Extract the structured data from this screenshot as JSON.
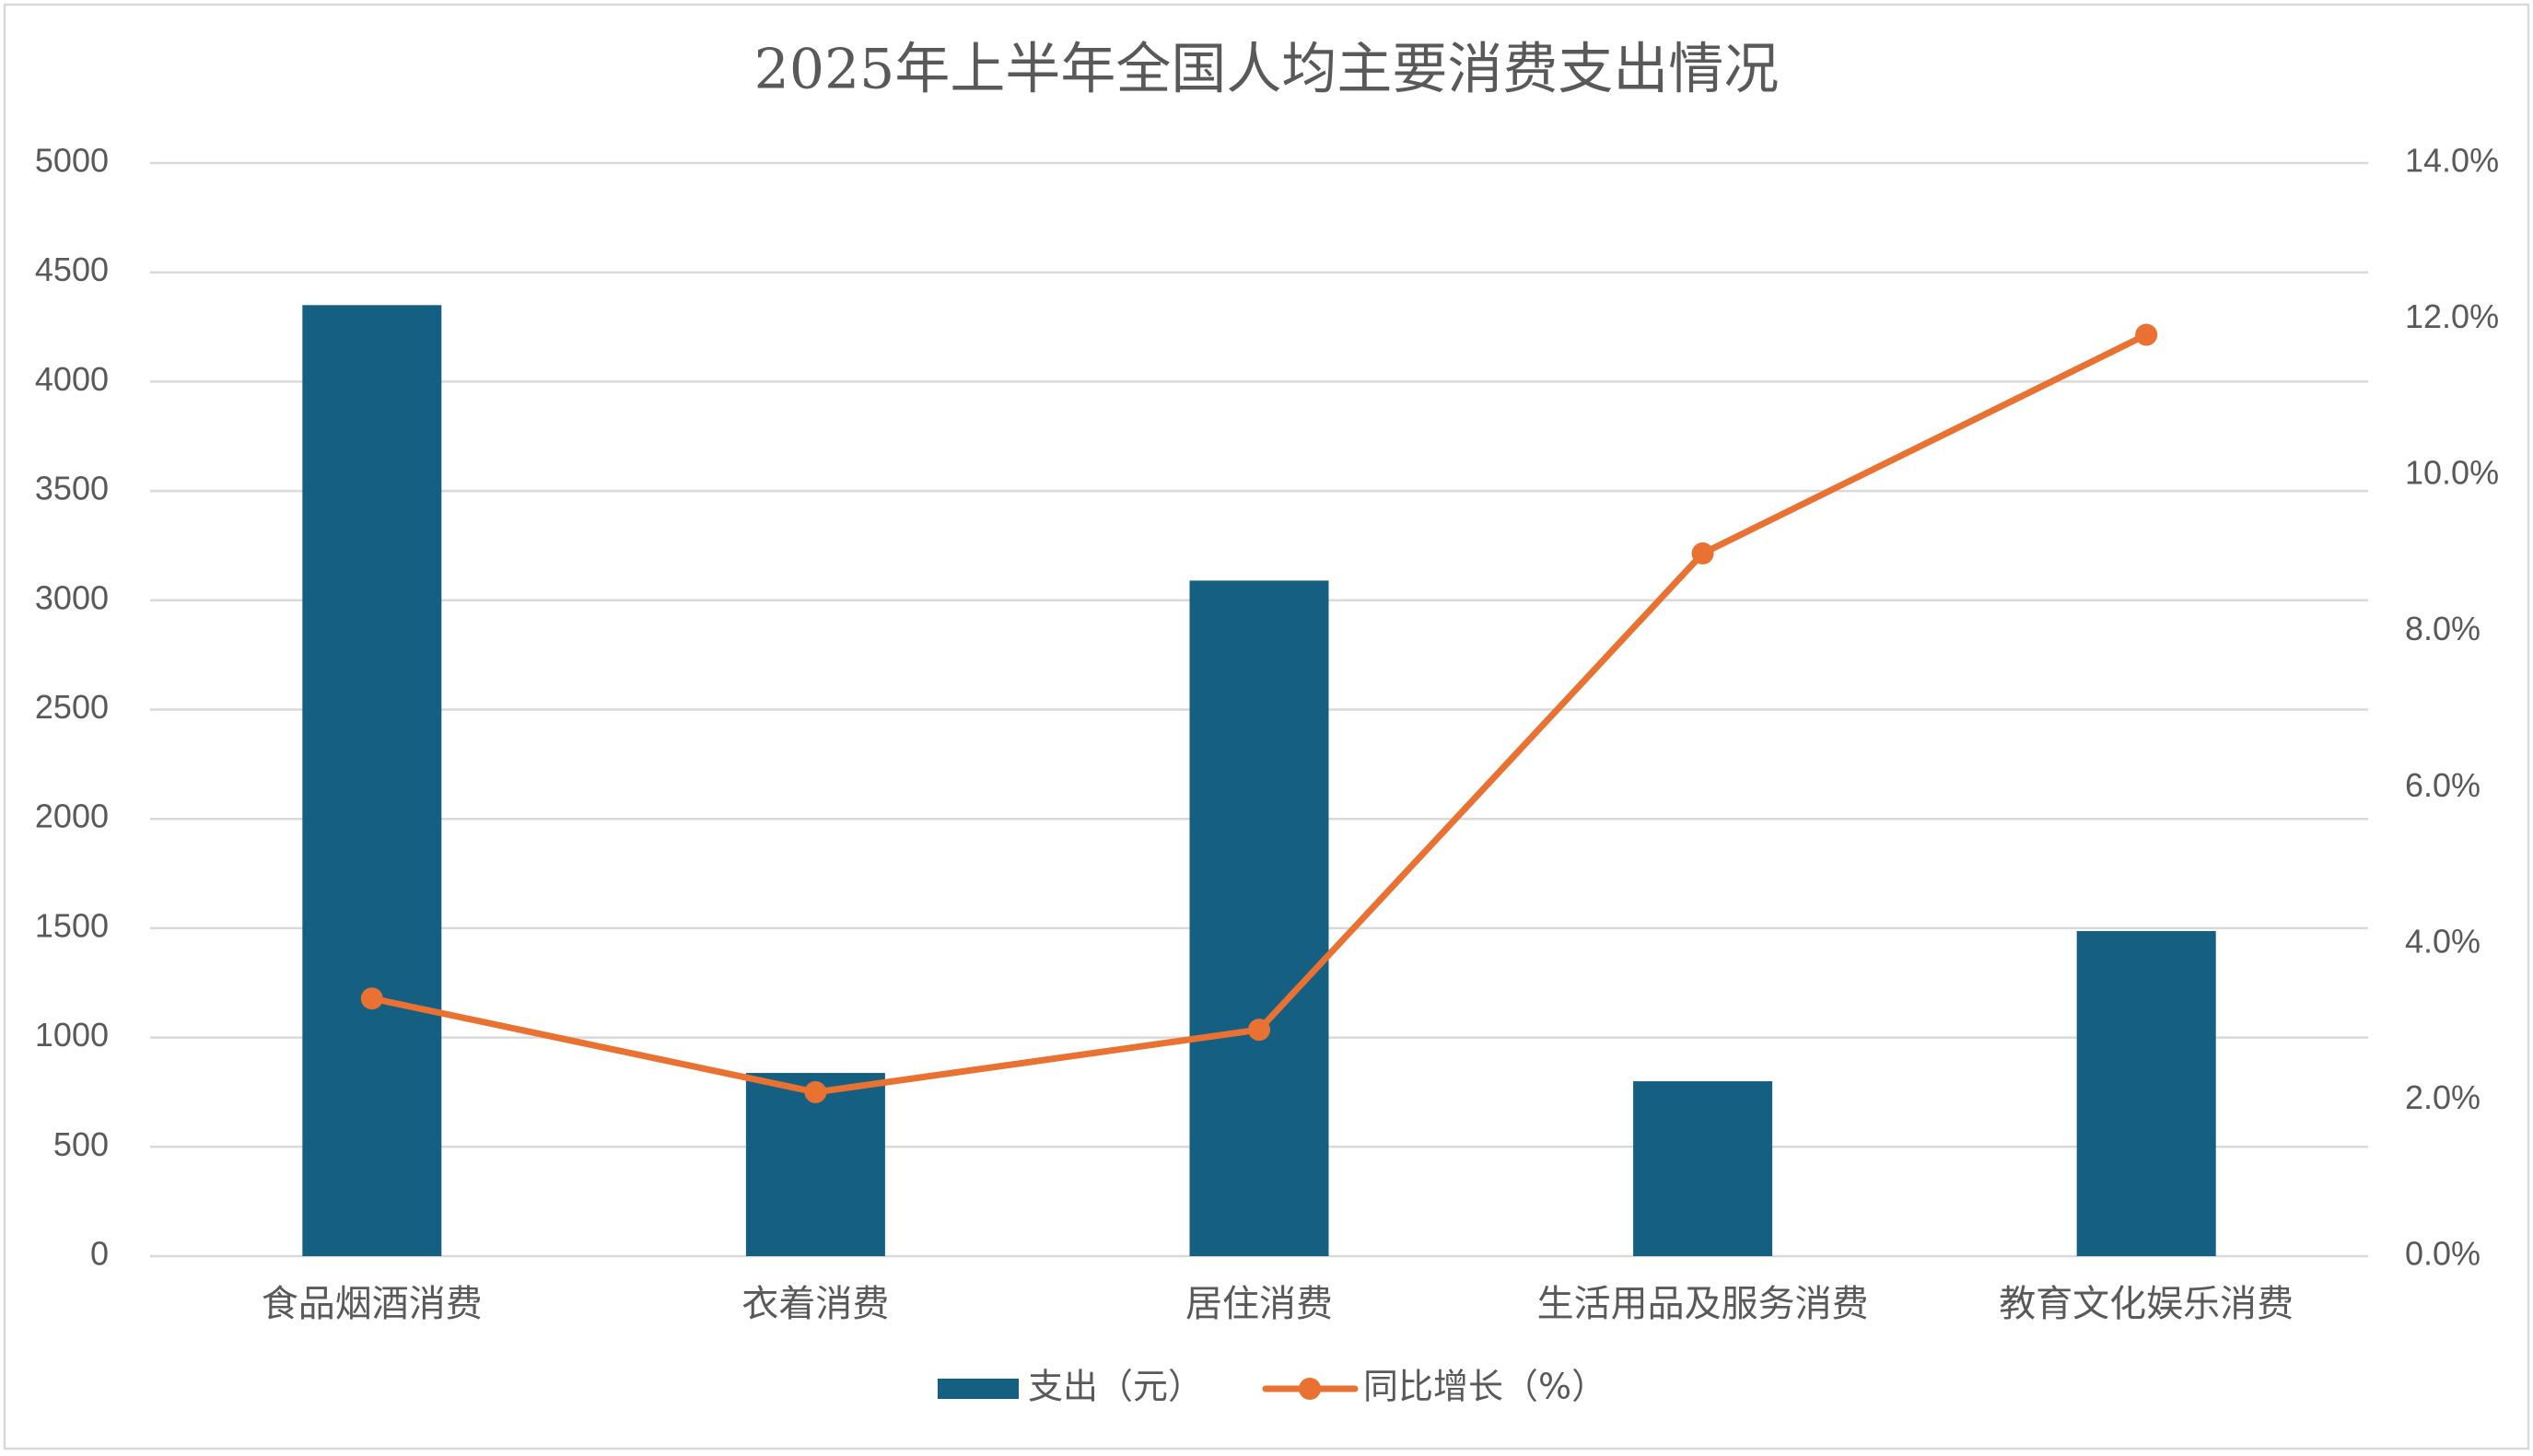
{
  "chart_data": {
    "type": "bar",
    "title": "2025年上半年全国人均主要消费支出情况",
    "categories": [
      "食品烟酒消费",
      "衣着消费",
      "居住消费",
      "生活用品及服务消费",
      "教育文化娱乐消费"
    ],
    "series": [
      {
        "name": "支出（元）",
        "type": "bar",
        "axis": "left",
        "color": "#156082",
        "values": [
          4350,
          838,
          3090,
          800,
          1487
        ]
      },
      {
        "name": "同比增长（%）",
        "type": "line",
        "axis": "right",
        "color": "#E97132",
        "values": [
          3.3,
          2.1,
          2.9,
          9.0,
          11.8
        ]
      }
    ],
    "y_left": {
      "ylim": [
        0,
        5000
      ],
      "ticks": [
        "0",
        "500",
        "1000",
        "1500",
        "2000",
        "2500",
        "3000",
        "3500",
        "4000",
        "4500",
        "5000"
      ]
    },
    "y_right": {
      "ylim": [
        0,
        14
      ],
      "ticks": [
        "0.0%",
        "2.0%",
        "4.0%",
        "6.0%",
        "8.0%",
        "10.0%",
        "12.0%",
        "14.0%"
      ]
    },
    "grid": true,
    "legend": "bottom-center",
    "gridline_color": "#D9D9D9",
    "text_color": "#595959"
  }
}
